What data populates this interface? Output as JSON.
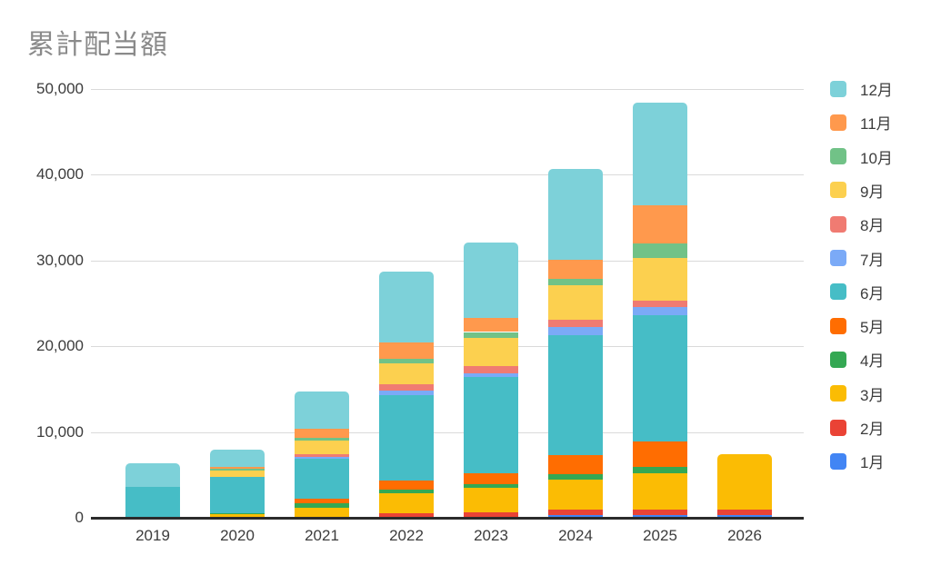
{
  "chart_data": {
    "type": "bar",
    "stacked": true,
    "title": "累計配当額",
    "xlabel": "",
    "ylabel": "",
    "categories": [
      "2019",
      "2020",
      "2021",
      "2022",
      "2023",
      "2024",
      "2025",
      "2026"
    ],
    "series": [
      {
        "name": "1月",
        "color": "#4285F4",
        "values": [
          0,
          0,
          0,
          0,
          0,
          320,
          320,
          320
        ]
      },
      {
        "name": "2月",
        "color": "#EA4335",
        "values": [
          0,
          0,
          0,
          530,
          600,
          640,
          640,
          600
        ]
      },
      {
        "name": "3月",
        "color": "#FBBC04",
        "values": [
          0,
          390,
          1130,
          2300,
          2900,
          3530,
          4240,
          6450
        ]
      },
      {
        "name": "4月",
        "color": "#34A853",
        "values": [
          0,
          190,
          530,
          420,
          390,
          600,
          710,
          0
        ]
      },
      {
        "name": "5月",
        "color": "#FF6D01",
        "values": [
          0,
          0,
          530,
          1060,
          1310,
          2230,
          3000,
          0
        ]
      },
      {
        "name": "6月",
        "color": "#46BDC6",
        "values": [
          3550,
          4130,
          4700,
          10000,
          11240,
          14000,
          14660,
          0
        ]
      },
      {
        "name": "7月",
        "color": "#7BAAF7",
        "values": [
          0,
          0,
          180,
          530,
          420,
          880,
          990,
          0
        ]
      },
      {
        "name": "8月",
        "color": "#F07B72",
        "values": [
          0,
          0,
          350,
          710,
          780,
          880,
          710,
          0
        ]
      },
      {
        "name": "9月",
        "color": "#FCD04F",
        "values": [
          0,
          820,
          1590,
          2400,
          3290,
          3960,
          5020,
          0
        ]
      },
      {
        "name": "10月",
        "color": "#71C287",
        "values": [
          0,
          170,
          320,
          600,
          710,
          810,
          1700,
          0
        ]
      },
      {
        "name": "11月",
        "color": "#FF994D",
        "values": [
          0,
          250,
          990,
          1880,
          1590,
          2190,
          4420,
          0
        ]
      },
      {
        "name": "12月",
        "color": "#7DD1D9",
        "values": [
          2750,
          1970,
          4420,
          8270,
          8800,
          10600,
          11980,
          0
        ]
      }
    ],
    "ylim": [
      0,
      50000
    ],
    "ytick_interval": 10000,
    "ytick_labels": [
      "0",
      "10,000",
      "20,000",
      "30,000",
      "40,000",
      "50,000"
    ],
    "grid": true,
    "legend": {
      "position": "right",
      "items": [
        "12月",
        "11月",
        "10月",
        "9月",
        "8月",
        "7月",
        "6月",
        "5月",
        "4月",
        "3月",
        "2月",
        "1月"
      ]
    }
  },
  "colors": {
    "background": "#ffffff",
    "title_text": "#8a8a8a",
    "axis_text": "#3c3c3c",
    "gridline": "#dadada",
    "baseline": "#2b2b2b"
  }
}
